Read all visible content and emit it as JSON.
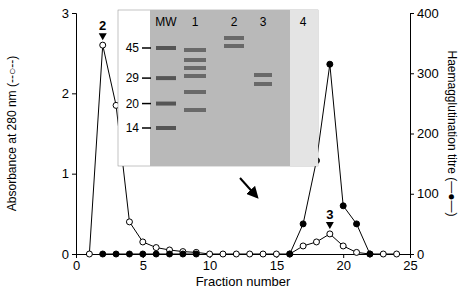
{
  "chart_data": {
    "type": "line",
    "xlabel": "Fraction number",
    "ylabel": "Absorbance at 280 nm (--○--)",
    "y2label": "Haemagglutination titre (—●—)",
    "x": [
      1,
      2,
      3,
      4,
      5,
      6,
      7,
      8,
      9,
      10,
      11,
      12,
      13,
      14,
      15,
      16,
      17,
      18,
      19,
      20,
      21,
      22,
      23,
      24
    ],
    "series": [
      {
        "color": "#000000",
        "marker": "open-circle",
        "line_style": "solid",
        "values": [
          0,
          2.6,
          1.85,
          0.4,
          0.15,
          0.08,
          0.05,
          0.03,
          0.02,
          0,
          0,
          0,
          0,
          0,
          0,
          0,
          0.1,
          0.15,
          0.25,
          0.1,
          0.02,
          0,
          0,
          0
        ]
      },
      {
        "axis": "y2",
        "color": "#000000",
        "marker": "filled-circle",
        "line_style": "solid",
        "values": [
          null,
          0,
          0,
          0,
          0,
          0,
          0,
          0,
          0,
          null,
          null,
          null,
          null,
          null,
          null,
          0,
          50,
          155,
          315,
          80,
          50,
          0,
          null,
          null
        ]
      }
    ],
    "xlim": [
      0,
      25
    ],
    "xticks": [
      0,
      5,
      10,
      15,
      20,
      25
    ],
    "ylim": [
      0,
      3
    ],
    "yticks": [
      0,
      1,
      2,
      3
    ],
    "y2lim": [
      0,
      400
    ],
    "y2ticks": [
      0,
      100,
      200,
      300,
      400
    ],
    "grid": false,
    "annotations": [
      {
        "text": "2",
        "x": 2,
        "y": 2.6
      },
      {
        "text": "3",
        "x": 19,
        "y": 0.25
      }
    ]
  },
  "inset": {
    "lane_labels": [
      "MW",
      "1",
      "2",
      "3",
      "4"
    ],
    "mw_markers": [
      45,
      29,
      20,
      14
    ]
  }
}
